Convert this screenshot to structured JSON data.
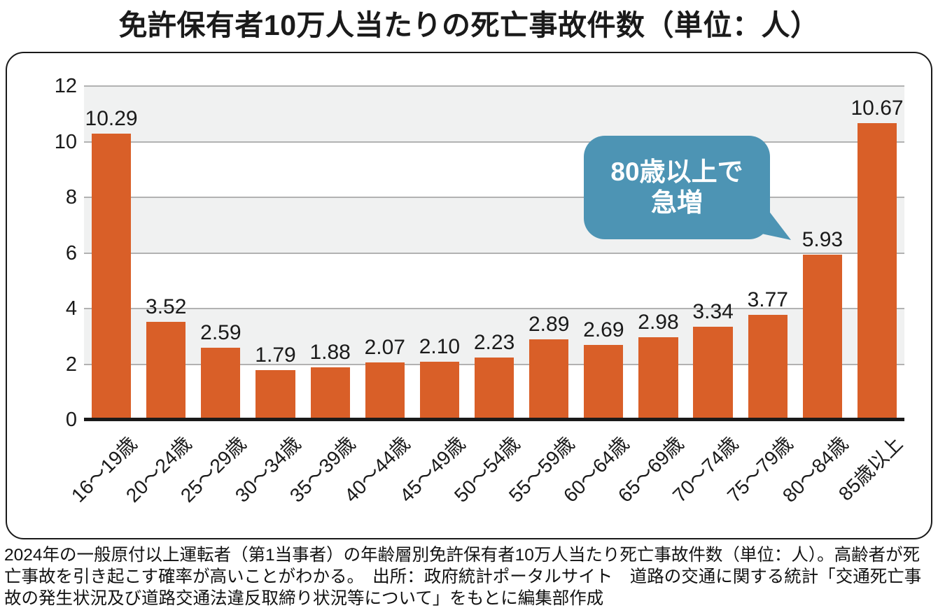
{
  "title": "免許保有者10万人当たりの死亡事故件数（単位：人）",
  "chart_data": {
    "type": "bar",
    "title": "免許保有者10万人当たりの死亡事故件数（単位：人）",
    "categories": [
      "16～19歳",
      "20～24歳",
      "25～29歳",
      "30～34歳",
      "35～39歳",
      "40～44歳",
      "45～49歳",
      "50～54歳",
      "55～59歳",
      "60～64歳",
      "65～69歳",
      "70～74歳",
      "75～79歳",
      "80～84歳",
      "85歳以上"
    ],
    "values": [
      10.29,
      3.52,
      2.59,
      1.79,
      1.88,
      2.07,
      2.1,
      2.23,
      2.89,
      2.69,
      2.98,
      3.34,
      3.77,
      5.93,
      10.67
    ],
    "value_labels": [
      "10.29",
      "3.52",
      "2.59",
      "1.79",
      "1.88",
      "2.07",
      "2.10",
      "2.23",
      "2.89",
      "2.69",
      "2.98",
      "3.34",
      "3.77",
      "5.93",
      "10.67"
    ],
    "xlabel": "",
    "ylabel": "",
    "ylim": [
      0,
      12
    ],
    "yticks": [
      0,
      2,
      4,
      6,
      8,
      10,
      12
    ],
    "grid": "horizontal-bands",
    "legend": "none",
    "colors": {
      "bar": "#d95f28",
      "band": "#f0f1f1",
      "gridline": "#b2b2b2",
      "baseline": "#1a1a1a",
      "callout_bg": "#4d94b4",
      "callout_text": "#ffffff"
    },
    "annotation": {
      "line1": "80歳以上で",
      "line2": "急増",
      "points_to": "80～84歳"
    }
  },
  "callout": {
    "line1": "80歳以上で",
    "line2": "急増"
  },
  "footer": {
    "note": "2024年の一般原付以上運転者（第1当事者）の年齢層別免許保有者10万人当たり死亡事故件数（単位：人）。高齢者が死亡事故を引き起こす確率が高いことがわかる。　出所：政府統計ポータルサイト　道路の交通に関する統計「交通死亡事故の発生状況及び道路交通法違反取締り状況等について」をもとに編集部作成"
  }
}
